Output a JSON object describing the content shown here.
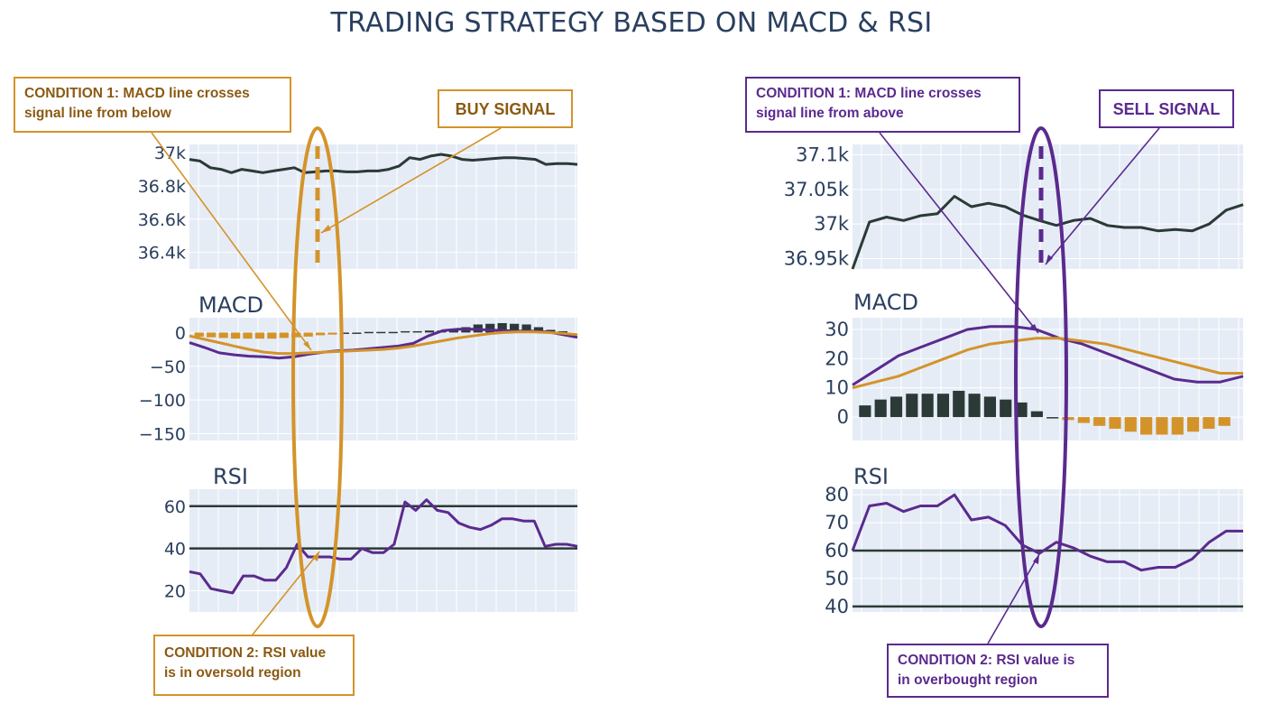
{
  "title": "TRADING STRATEGY BASED ON MACD & RSI",
  "colors": {
    "price": "#2b3a36",
    "macd": "#5b2a8e",
    "signal": "#d4932a",
    "hist_pos": "#2b3a36",
    "hist_neg": "#d4932a",
    "rsi": "#5b2a8e",
    "ref_line": "#2b3a36",
    "plot_bg": "#e5ecf6",
    "buy_accent": "#d4932a",
    "sell_accent": "#5b2a8e"
  },
  "left": {
    "callout_condition1": [
      "CONDITION 1: MACD line crosses",
      "signal line from below"
    ],
    "signal_label": "BUY SIGNAL",
    "callout_condition2": [
      "CONDITION 2: RSI value",
      "is in oversold region"
    ]
  },
  "right": {
    "callout_condition1": [
      "CONDITION 1: MACD line crosses",
      "signal line from above"
    ],
    "signal_label": "SELL SIGNAL",
    "callout_condition2": [
      "CONDITION 2: RSI value is",
      "in overbought region"
    ]
  },
  "chart_data": [
    {
      "type": "line",
      "panel": "left-price",
      "title": "",
      "ylim": [
        36300,
        37050
      ],
      "yticks": [
        37000,
        36800,
        36600,
        36400
      ],
      "ytick_labels": [
        "37k",
        "36.8k",
        "36.6k",
        "36.4k"
      ],
      "series": [
        {
          "values": [
            36960,
            36950,
            36910,
            36900,
            36880,
            36900,
            36890,
            36880,
            36890,
            36900,
            36910,
            36880,
            36885,
            36890,
            36890,
            36885,
            36885,
            36890,
            36890,
            36900,
            36920,
            36970,
            36960,
            36980,
            36990,
            36980,
            36960,
            36955,
            36960,
            36965,
            36970,
            36970,
            36965,
            36960,
            36930,
            36935,
            36935,
            36930
          ]
        }
      ]
    },
    {
      "type": "line",
      "panel": "left-macd",
      "title": "MACD",
      "ylim": [
        -160,
        22
      ],
      "yticks": [
        0,
        -50,
        -100,
        -150
      ],
      "ytick_labels": [
        "0",
        "−50",
        "−100",
        "−150"
      ],
      "series": [
        {
          "values": [
            -15,
            -22,
            -30,
            -33,
            -35,
            -36,
            -38,
            -36,
            -32,
            -29,
            -27,
            -26,
            -24,
            -22,
            -20,
            -16,
            -5,
            3,
            5,
            5,
            4,
            3,
            2,
            2,
            1,
            -3,
            -7
          ]
        },
        {
          "values": [
            -5,
            -10,
            -15,
            -20,
            -25,
            -29,
            -31,
            -31,
            -30,
            -29,
            -28,
            -27,
            -26,
            -25,
            -23,
            -20,
            -16,
            -12,
            -8,
            -5,
            -2,
            0,
            1,
            1,
            0,
            -1,
            -3
          ]
        }
      ],
      "histogram": [
        -6,
        -7,
        -8,
        -9,
        -9,
        -9,
        -9,
        -8,
        -7,
        -6,
        -4,
        -3,
        0,
        0,
        1,
        1,
        1,
        2,
        2,
        3,
        3,
        5,
        8,
        12,
        13,
        14,
        13,
        12,
        8,
        4,
        2
      ]
    },
    {
      "type": "line",
      "panel": "left-rsi",
      "title": "RSI",
      "ylim": [
        10,
        68
      ],
      "yticks": [
        60,
        40,
        20
      ],
      "ytick_labels": [
        "60",
        "40",
        "20"
      ],
      "ref_lines": [
        60,
        40
      ],
      "series": [
        {
          "values": [
            29,
            28,
            21,
            20,
            19,
            27,
            27,
            25,
            25,
            31,
            42,
            36,
            36,
            36,
            35,
            35,
            40,
            38,
            38,
            42,
            62,
            58,
            63,
            58,
            57,
            52,
            50,
            49,
            51,
            54,
            54,
            53,
            53,
            41,
            42,
            42,
            41
          ]
        }
      ]
    },
    {
      "type": "line",
      "panel": "right-price",
      "title": "",
      "ylim": [
        36935,
        37115
      ],
      "yticks": [
        37100,
        37050,
        37000,
        36950
      ],
      "ytick_labels": [
        "37.1k",
        "37.05k",
        "37k",
        "36.95k"
      ],
      "series": [
        {
          "values": [
            36935,
            37003,
            37010,
            37005,
            37012,
            37015,
            37040,
            37025,
            37030,
            37025,
            37013,
            37005,
            36998,
            37005,
            37008,
            36998,
            36995,
            36995,
            36990,
            36992,
            36990,
            37000,
            37020,
            37028
          ]
        }
      ]
    },
    {
      "type": "line",
      "panel": "right-macd",
      "title": "MACD",
      "ylim": [
        -8,
        34
      ],
      "yticks": [
        30,
        20,
        10,
        0
      ],
      "ytick_labels": [
        "30",
        "20",
        "10",
        "0"
      ],
      "series": [
        {
          "values": [
            11,
            16,
            21,
            24,
            27,
            30,
            31,
            31,
            30,
            27,
            25,
            22,
            19,
            16,
            13,
            12,
            12,
            14
          ]
        },
        {
          "values": [
            10,
            12,
            14,
            17,
            20,
            23,
            25,
            26,
            27,
            27,
            26,
            25,
            23,
            21,
            19,
            17,
            15,
            15
          ]
        }
      ],
      "histogram": [
        4,
        6,
        7,
        8,
        8,
        8,
        9,
        8,
        7,
        6,
        5,
        2,
        0,
        -1,
        -2,
        -3,
        -4,
        -5,
        -6,
        -6,
        -6,
        -5,
        -4,
        -3
      ]
    },
    {
      "type": "line",
      "panel": "right-rsi",
      "title": "RSI",
      "ylim": [
        38,
        82
      ],
      "yticks": [
        80,
        70,
        60,
        50,
        40
      ],
      "ytick_labels": [
        "80",
        "70",
        "60",
        "50",
        "40"
      ],
      "ref_lines": [
        60,
        40
      ],
      "series": [
        {
          "values": [
            60,
            76,
            77,
            74,
            76,
            76,
            80,
            71,
            72,
            69,
            62,
            59,
            63,
            61,
            58,
            56,
            56,
            53,
            54,
            54,
            57,
            63,
            67,
            67
          ]
        }
      ]
    }
  ]
}
